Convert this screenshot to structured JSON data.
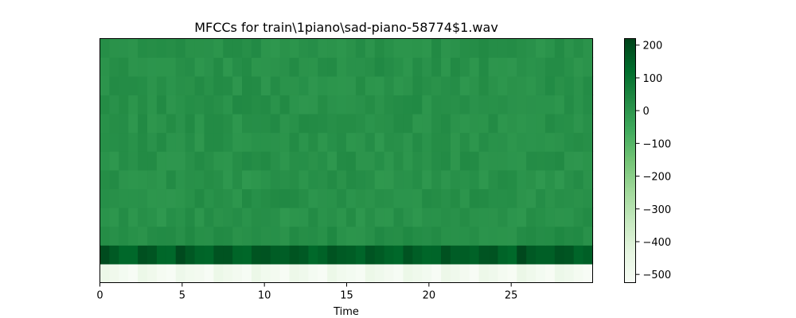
{
  "chart_data": {
    "type": "heatmap",
    "title": "MFCCs for train\\1piano\\sad-piano-58774$1.wav",
    "xlabel": "Time",
    "ylabel": "",
    "x_range": [
      0,
      29.95
    ],
    "x_ticks": [
      0,
      5,
      10,
      15,
      20,
      25
    ],
    "x_tick_labels": [
      "0",
      "5",
      "10",
      "15",
      "20",
      "25"
    ],
    "n_coefficients": 13,
    "n_frames": 52,
    "colormap": "Greens",
    "colorbar": {
      "range": [
        -525,
        220
      ],
      "ticks": [
        200,
        100,
        0,
        -100,
        -200,
        -300,
        -400,
        -500
      ],
      "tick_labels": [
        "200",
        "100",
        "0",
        "−100",
        "−200",
        "−300",
        "−400",
        "−500"
      ]
    },
    "row_values_bottom_to_top": [
      {
        "coefficient": 1,
        "typical": -490,
        "min": -525,
        "max": -440
      },
      {
        "coefficient": 2,
        "typical": 165,
        "min": 120,
        "max": 215
      },
      {
        "coefficient": 3,
        "typical": 25,
        "min": 5,
        "max": 45
      },
      {
        "coefficient": 4,
        "typical": 15,
        "min": -5,
        "max": 35
      },
      {
        "coefficient": 5,
        "typical": 20,
        "min": 0,
        "max": 40
      },
      {
        "coefficient": 6,
        "typical": 15,
        "min": -5,
        "max": 35
      },
      {
        "coefficient": 7,
        "typical": 18,
        "min": 0,
        "max": 38
      },
      {
        "coefficient": 8,
        "typical": 15,
        "min": -5,
        "max": 35
      },
      {
        "coefficient": 9,
        "typical": 18,
        "min": 0,
        "max": 38
      },
      {
        "coefficient": 10,
        "typical": 20,
        "min": 0,
        "max": 40
      },
      {
        "coefficient": 11,
        "typical": 18,
        "min": 0,
        "max": 38
      },
      {
        "coefficient": 12,
        "typical": 20,
        "min": 0,
        "max": 40
      },
      {
        "coefficient": 13,
        "typical": 18,
        "min": 0,
        "max": 38
      }
    ],
    "grid": false
  }
}
